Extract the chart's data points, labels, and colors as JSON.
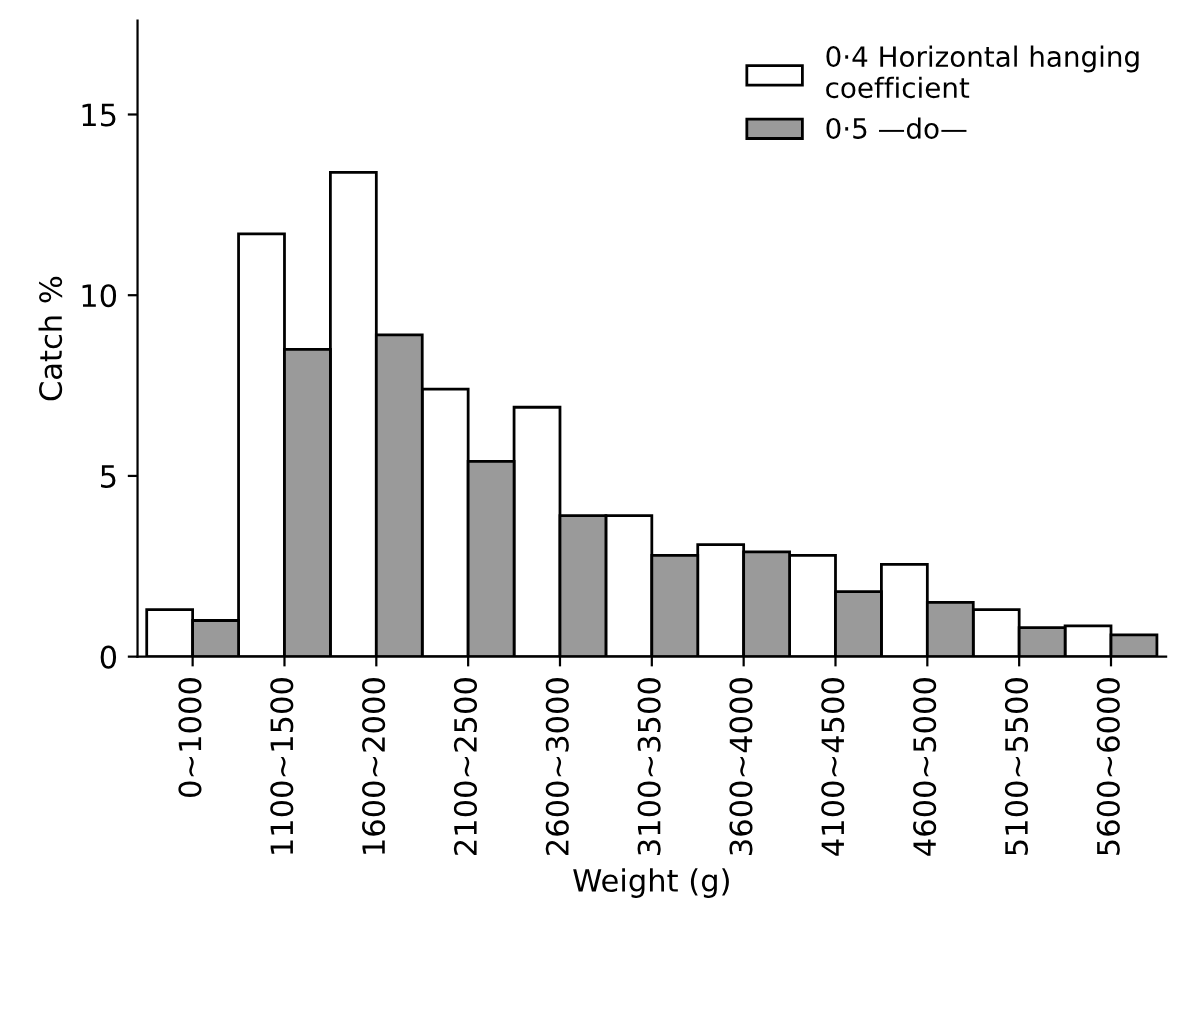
{
  "chart_data": {
    "type": "bar",
    "xlabel": "Weight (g)",
    "ylabel": "Catch %",
    "categories": [
      "0~1000",
      "1100~1500",
      "1600~2000",
      "2100~2500",
      "2600~3000",
      "3100~3500",
      "3600~4000",
      "4100~4500",
      "4600~5000",
      "5100~5500",
      "5600~6000"
    ],
    "series": [
      {
        "name": "0·4 Horizontal hanging\ncoefficient",
        "color": "#ffffff",
        "values": [
          1.3,
          11.7,
          13.4,
          7.4,
          6.9,
          3.9,
          3.1,
          2.8,
          2.55,
          1.3,
          0.85
        ]
      },
      {
        "name": "0·5 —do—",
        "color": "#9a9a9a",
        "values": [
          1.0,
          8.5,
          8.9,
          5.4,
          3.9,
          2.8,
          2.9,
          1.8,
          1.5,
          0.8,
          0.6
        ]
      }
    ],
    "ylim": [
      0,
      17.6
    ],
    "yticks": [
      0,
      5,
      10,
      15
    ],
    "legend": "top right",
    "grid": false
  }
}
